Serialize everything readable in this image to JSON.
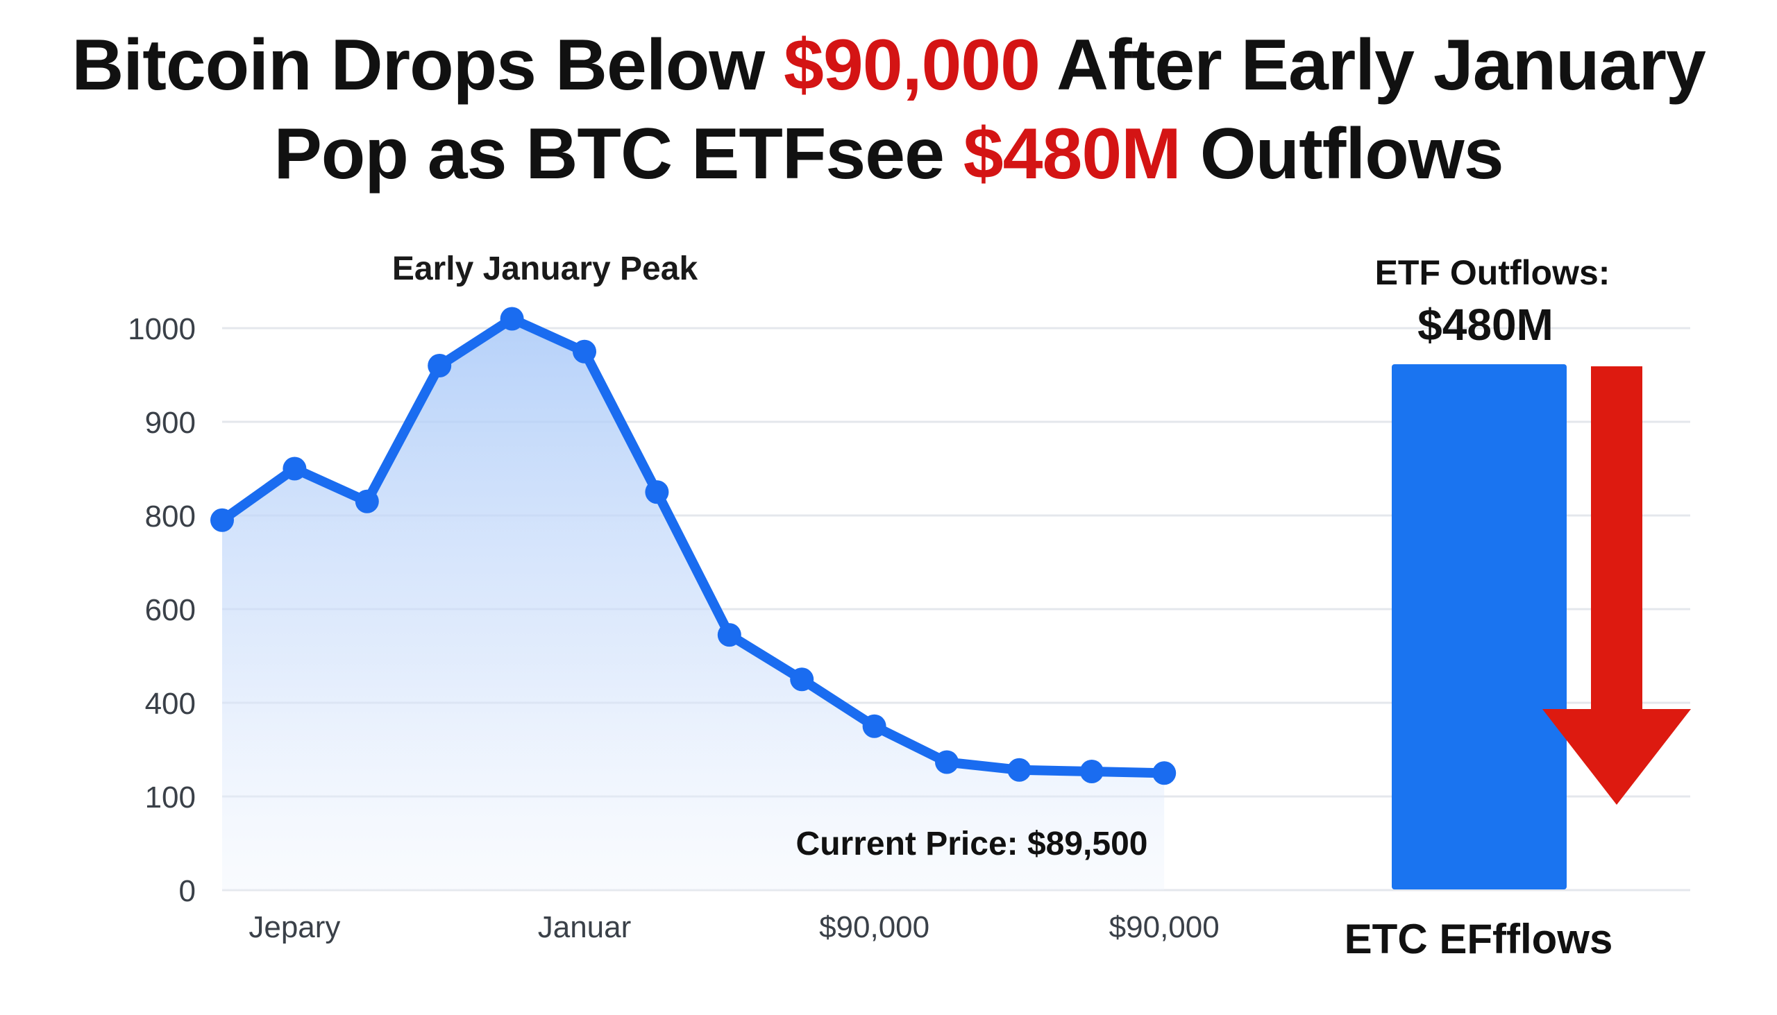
{
  "headline": {
    "line1_pre": "Bitcoin Drops Below ",
    "line1_hl": "$90,000",
    "line1_post": " After Early January",
    "line2_pre": "Pop as BTC ETFsee ",
    "line2_hl": "$480M",
    "line2_post": " Outflows"
  },
  "colors": {
    "line": "#1a6cf0",
    "area": "#bcd6fb",
    "bar": "#1a74f0",
    "arrow": "#dd1a10",
    "highlight": "#d41414",
    "text": "#111111",
    "axis_text": "#3a4048"
  },
  "chart_data": {
    "type": "line",
    "title": "",
    "xlabel": "",
    "ylabel": "",
    "ylim": [
      0,
      1000
    ],
    "yticks": [
      {
        "label": "0",
        "value": 0
      },
      {
        "label": "100",
        "value": 100
      },
      {
        "label": "400",
        "value": 400
      },
      {
        "label": "600",
        "value": 600
      },
      {
        "label": "800",
        "value": 800
      },
      {
        "label": "900",
        "value": 900
      },
      {
        "label": "1000",
        "value": 1000
      }
    ],
    "xticks": [
      {
        "label": "Jepary",
        "x": 1
      },
      {
        "label": "Januar",
        "x": 5
      },
      {
        "label": "$90,000",
        "x": 9
      },
      {
        "label": "$90,000",
        "x": 13
      }
    ],
    "grid": true,
    "series": [
      {
        "x": [
          0,
          1,
          2,
          3,
          4,
          5,
          6,
          7,
          8,
          9,
          10,
          11,
          12,
          13
        ],
        "values": [
          790,
          850,
          815,
          960,
          1010,
          975,
          825,
          545,
          450,
          325,
          210,
          185,
          180,
          175
        ]
      }
    ],
    "annotations": {
      "peak": "Early January Peak",
      "current": "Current Price: $89,500"
    },
    "etf": {
      "title": "ETF Outflows:",
      "value": "$480M",
      "label": "ETC EFfflows"
    }
  }
}
